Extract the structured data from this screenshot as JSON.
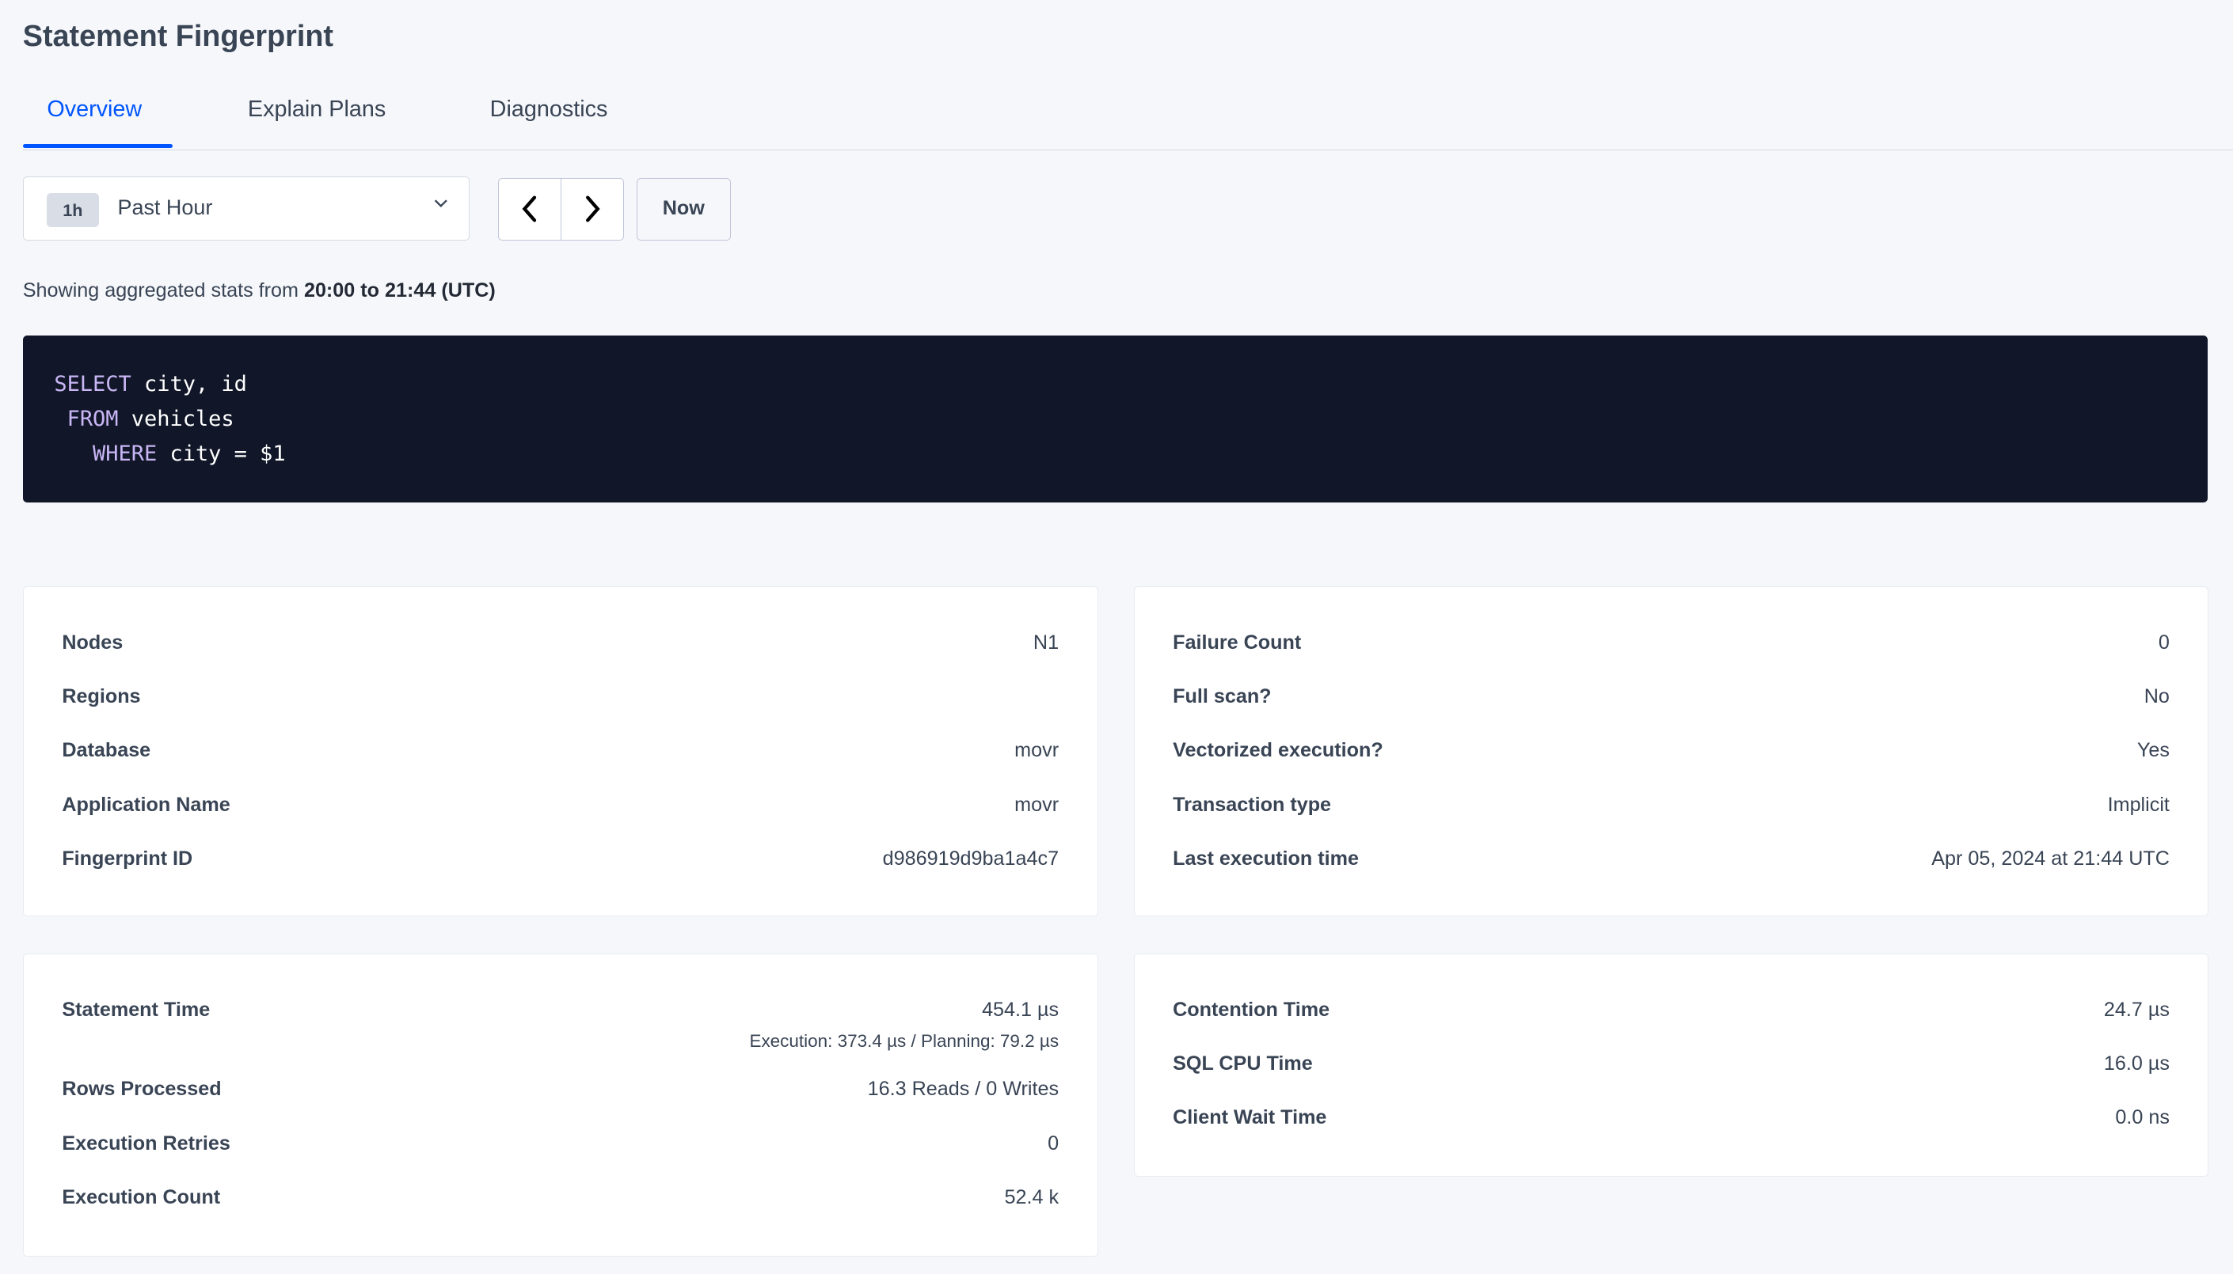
{
  "page": {
    "title": "Statement Fingerprint"
  },
  "tabs": [
    {
      "label": "Overview",
      "active": true
    },
    {
      "label": "Explain Plans",
      "active": false
    },
    {
      "label": "Diagnostics",
      "active": false
    }
  ],
  "time_selector": {
    "badge": "1h",
    "label": "Past Hour",
    "icon": "chevron-down-icon"
  },
  "nav": {
    "prev_icon": "chevron-left-icon",
    "next_icon": "chevron-right-icon",
    "now_label": "Now"
  },
  "range_text": {
    "prefix": "Showing aggregated stats from ",
    "range": "20:00 to 21:44 (UTC)"
  },
  "sql": {
    "line1_kw": "SELECT",
    "line1": " city, id",
    "line2_kw": "FROM",
    "line2": " vehicles",
    "line3_kw": "WHERE",
    "line3": " city = $1"
  },
  "summary_left": [
    {
      "label": "Nodes",
      "value": "N1",
      "link": true
    },
    {
      "label": "Regions",
      "value": ""
    },
    {
      "label": "Database",
      "value": "movr"
    },
    {
      "label": "Application Name",
      "value": "movr",
      "link": true
    },
    {
      "label": "Fingerprint ID",
      "value": "d986919d9ba1a4c7"
    }
  ],
  "summary_right": [
    {
      "label": "Failure Count",
      "value": "0"
    },
    {
      "label": "Full scan?",
      "value": "No"
    },
    {
      "label": "Vectorized execution?",
      "value": "Yes"
    },
    {
      "label": "Transaction type",
      "value": "Implicit"
    },
    {
      "label": "Last execution time",
      "value": "Apr 05, 2024 at 21:44 UTC"
    }
  ],
  "stats_left": [
    {
      "label": "Statement Time",
      "value": "454.1 µs",
      "sub": "Execution: 373.4 µs / Planning: 79.2 µs"
    },
    {
      "label": "Rows Processed",
      "value": "16.3 Reads / 0 Writes"
    },
    {
      "label": "Execution Retries",
      "value": "0"
    },
    {
      "label": "Execution Count",
      "value": "52.4 k"
    }
  ],
  "stats_right": [
    {
      "label": "Contention Time",
      "value": "24.7 µs"
    },
    {
      "label": "SQL CPU Time",
      "value": "16.0 µs"
    },
    {
      "label": "Client Wait Time",
      "value": "0.0 ns"
    }
  ],
  "colors": {
    "accent": "#0055ff",
    "code_bg": "#111729",
    "keyword": "#c9b6f5",
    "page_bg": "#f5f7fa"
  }
}
